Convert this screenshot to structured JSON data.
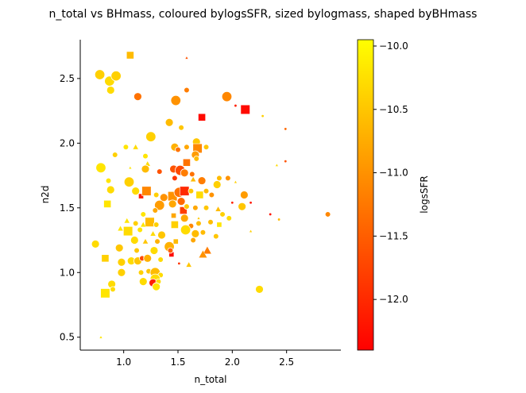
{
  "chart_data": {
    "type": "scatter",
    "title": "n_total vs BHmass, coloured bylogsSFR, sized bylogmass, shaped byBHmass",
    "xlabel": "n_total",
    "ylabel": "n2d",
    "colorbar_label": "logsSFR",
    "xlim": [
      0.6,
      3.0
    ],
    "ylim": [
      0.4,
      2.8
    ],
    "xticks": [
      "1.0",
      "1.5",
      "2.0",
      "2.5"
    ],
    "yticks": [
      "0.5",
      "1.0",
      "1.5",
      "2.0",
      "2.5"
    ],
    "cbar_ticks": [
      "−10.0",
      "−10.5",
      "−11.0",
      "−11.5",
      "−12.0"
    ],
    "cbar_range": [
      -12.4,
      -9.95
    ],
    "colormap": "autumn",
    "colors": {
      "low": "#ff0000",
      "high": "#ffff00"
    },
    "legend": "none",
    "grid": false,
    "points": [
      {
        "x": 0.78,
        "y": 2.53,
        "c": -10.4,
        "m": "circle",
        "s": "large"
      },
      {
        "x": 0.87,
        "y": 2.48,
        "c": -10.3,
        "m": "circle",
        "s": "large"
      },
      {
        "x": 0.93,
        "y": 2.52,
        "c": -10.4,
        "m": "circle",
        "s": "large"
      },
      {
        "x": 0.88,
        "y": 2.41,
        "c": -10.3,
        "m": "circle",
        "s": "medium"
      },
      {
        "x": 1.06,
        "y": 2.68,
        "c": -10.6,
        "m": "square",
        "s": "medium"
      },
      {
        "x": 1.13,
        "y": 2.36,
        "c": -11.3,
        "m": "circle",
        "s": "medium"
      },
      {
        "x": 1.58,
        "y": 2.66,
        "c": -11.6,
        "m": "triangle",
        "s": "tiny"
      },
      {
        "x": 1.48,
        "y": 2.33,
        "c": -11.0,
        "m": "circle",
        "s": "large"
      },
      {
        "x": 1.58,
        "y": 2.41,
        "c": -11.2,
        "m": "circle",
        "s": "small"
      },
      {
        "x": 1.95,
        "y": 2.36,
        "c": -11.1,
        "m": "circle",
        "s": "large"
      },
      {
        "x": 2.03,
        "y": 2.29,
        "c": -12.1,
        "m": "circle",
        "s": "tiny"
      },
      {
        "x": 2.12,
        "y": 2.26,
        "c": -12.3,
        "m": "square",
        "s": "large"
      },
      {
        "x": 1.72,
        "y": 2.2,
        "c": -12.3,
        "m": "square",
        "s": "medium"
      },
      {
        "x": 1.42,
        "y": 2.16,
        "c": -10.6,
        "m": "circle",
        "s": "medium"
      },
      {
        "x": 1.53,
        "y": 2.12,
        "c": -10.5,
        "m": "circle",
        "s": "small"
      },
      {
        "x": 2.28,
        "y": 2.21,
        "c": -10.4,
        "m": "circle",
        "s": "tiny"
      },
      {
        "x": 2.49,
        "y": 2.11,
        "c": -11.4,
        "m": "circle",
        "s": "tiny"
      },
      {
        "x": 1.25,
        "y": 2.05,
        "c": -10.4,
        "m": "circle",
        "s": "large"
      },
      {
        "x": 1.02,
        "y": 1.97,
        "c": -10.2,
        "m": "circle",
        "s": "small"
      },
      {
        "x": 1.11,
        "y": 1.97,
        "c": -10.3,
        "m": "triangle",
        "s": "small"
      },
      {
        "x": 0.92,
        "y": 1.91,
        "c": -10.4,
        "m": "circle",
        "s": "small"
      },
      {
        "x": 1.2,
        "y": 1.9,
        "c": -10.2,
        "m": "circle",
        "s": "small"
      },
      {
        "x": 1.47,
        "y": 1.97,
        "c": -10.7,
        "m": "circle",
        "s": "medium"
      },
      {
        "x": 1.5,
        "y": 1.95,
        "c": -11.3,
        "m": "circle",
        "s": "small"
      },
      {
        "x": 1.58,
        "y": 1.97,
        "c": -10.8,
        "m": "circle",
        "s": "small"
      },
      {
        "x": 1.67,
        "y": 2.01,
        "c": -10.5,
        "m": "circle",
        "s": "medium"
      },
      {
        "x": 1.68,
        "y": 1.96,
        "c": -11.1,
        "m": "square",
        "s": "large"
      },
      {
        "x": 1.76,
        "y": 1.97,
        "c": -10.5,
        "m": "circle",
        "s": "small"
      },
      {
        "x": 1.22,
        "y": 1.84,
        "c": -10.3,
        "m": "triangle",
        "s": "small"
      },
      {
        "x": 1.58,
        "y": 1.85,
        "c": -11.3,
        "m": "square",
        "s": "medium"
      },
      {
        "x": 1.66,
        "y": 1.91,
        "c": -10.9,
        "m": "circle",
        "s": "medium"
      },
      {
        "x": 1.67,
        "y": 1.88,
        "c": -10.6,
        "m": "circle",
        "s": "small"
      },
      {
        "x": 2.49,
        "y": 1.86,
        "c": -11.6,
        "m": "circle",
        "s": "tiny"
      },
      {
        "x": 2.41,
        "y": 1.83,
        "c": -10.3,
        "m": "triangle",
        "s": "tiny"
      },
      {
        "x": 0.79,
        "y": 1.81,
        "c": -10.2,
        "m": "circle",
        "s": "large"
      },
      {
        "x": 1.06,
        "y": 1.81,
        "c": -10.2,
        "m": "triangle",
        "s": "tiny"
      },
      {
        "x": 1.2,
        "y": 1.8,
        "c": -10.6,
        "m": "circle",
        "s": "medium"
      },
      {
        "x": 1.33,
        "y": 1.78,
        "c": -11.6,
        "m": "circle",
        "s": "small"
      },
      {
        "x": 1.46,
        "y": 1.8,
        "c": -11.6,
        "m": "circle",
        "s": "medium"
      },
      {
        "x": 1.52,
        "y": 1.79,
        "c": -11.7,
        "m": "circle",
        "s": "large"
      },
      {
        "x": 1.56,
        "y": 1.77,
        "c": -11.2,
        "m": "circle",
        "s": "medium"
      },
      {
        "x": 1.63,
        "y": 1.76,
        "c": -11.3,
        "m": "circle",
        "s": "small"
      },
      {
        "x": 1.64,
        "y": 1.72,
        "c": -10.6,
        "m": "triangle",
        "s": "small"
      },
      {
        "x": 1.47,
        "y": 1.73,
        "c": -11.9,
        "m": "circle",
        "s": "small"
      },
      {
        "x": 1.72,
        "y": 1.71,
        "c": -11.2,
        "m": "circle",
        "s": "medium"
      },
      {
        "x": 1.88,
        "y": 1.73,
        "c": -10.6,
        "m": "circle",
        "s": "small"
      },
      {
        "x": 1.96,
        "y": 1.73,
        "c": -11.0,
        "m": "circle",
        "s": "small"
      },
      {
        "x": 2.03,
        "y": 1.7,
        "c": -10.4,
        "m": "triangle",
        "s": "tiny"
      },
      {
        "x": 0.86,
        "y": 1.71,
        "c": -10.2,
        "m": "circle",
        "s": "small"
      },
      {
        "x": 1.05,
        "y": 1.7,
        "c": -10.4,
        "m": "circle",
        "s": "large"
      },
      {
        "x": 1.11,
        "y": 1.63,
        "c": -10.3,
        "m": "circle",
        "s": "medium"
      },
      {
        "x": 1.16,
        "y": 1.59,
        "c": -12.1,
        "m": "square",
        "s": "small"
      },
      {
        "x": 1.21,
        "y": 1.63,
        "c": -11.1,
        "m": "square",
        "s": "large"
      },
      {
        "x": 1.3,
        "y": 1.6,
        "c": -10.4,
        "m": "circle",
        "s": "small"
      },
      {
        "x": 1.37,
        "y": 1.58,
        "c": -11.0,
        "m": "circle",
        "s": "medium"
      },
      {
        "x": 1.45,
        "y": 1.59,
        "c": -11.0,
        "m": "square",
        "s": "large"
      },
      {
        "x": 1.51,
        "y": 1.62,
        "c": -11.3,
        "m": "circle",
        "s": "large"
      },
      {
        "x": 1.56,
        "y": 1.63,
        "c": -12.0,
        "m": "square",
        "s": "large"
      },
      {
        "x": 1.53,
        "y": 1.55,
        "c": -11.4,
        "m": "circle",
        "s": "medium"
      },
      {
        "x": 1.62,
        "y": 1.63,
        "c": -10.5,
        "m": "circle",
        "s": "small"
      },
      {
        "x": 1.7,
        "y": 1.6,
        "c": -10.3,
        "m": "square",
        "s": "medium"
      },
      {
        "x": 1.76,
        "y": 1.63,
        "c": -10.6,
        "m": "circle",
        "s": "small"
      },
      {
        "x": 1.81,
        "y": 1.6,
        "c": -11.0,
        "m": "circle",
        "s": "small"
      },
      {
        "x": 2.11,
        "y": 1.6,
        "c": -10.9,
        "m": "circle",
        "s": "medium"
      },
      {
        "x": 1.86,
        "y": 1.68,
        "c": -10.4,
        "m": "circle",
        "s": "medium"
      },
      {
        "x": 0.88,
        "y": 1.64,
        "c": -10.3,
        "m": "circle",
        "s": "medium"
      },
      {
        "x": 0.85,
        "y": 1.53,
        "c": -10.2,
        "m": "square",
        "s": "medium"
      },
      {
        "x": 1.33,
        "y": 1.52,
        "c": -10.9,
        "m": "circle",
        "s": "large"
      },
      {
        "x": 1.45,
        "y": 1.53,
        "c": -10.8,
        "m": "circle",
        "s": "medium"
      },
      {
        "x": 1.55,
        "y": 1.48,
        "c": -11.8,
        "m": "square",
        "s": "medium"
      },
      {
        "x": 1.58,
        "y": 1.51,
        "c": -10.5,
        "m": "circle",
        "s": "small"
      },
      {
        "x": 1.66,
        "y": 1.5,
        "c": -10.8,
        "m": "circle",
        "s": "small"
      },
      {
        "x": 1.76,
        "y": 1.5,
        "c": -10.5,
        "m": "circle",
        "s": "small"
      },
      {
        "x": 1.87,
        "y": 1.49,
        "c": -10.6,
        "m": "triangle",
        "s": "small"
      },
      {
        "x": 1.91,
        "y": 1.45,
        "c": -10.4,
        "m": "circle",
        "s": "small"
      },
      {
        "x": 2.0,
        "y": 1.54,
        "c": -12.1,
        "m": "circle",
        "s": "tiny"
      },
      {
        "x": 2.09,
        "y": 1.51,
        "c": -10.5,
        "m": "circle",
        "s": "medium"
      },
      {
        "x": 2.17,
        "y": 1.54,
        "c": -12.2,
        "m": "circle",
        "s": "tiny"
      },
      {
        "x": 2.35,
        "y": 1.45,
        "c": -12.2,
        "m": "circle",
        "s": "tiny"
      },
      {
        "x": 2.43,
        "y": 1.41,
        "c": -10.6,
        "m": "circle",
        "s": "tiny"
      },
      {
        "x": 2.88,
        "y": 1.45,
        "c": -11.1,
        "m": "circle",
        "s": "small"
      },
      {
        "x": 1.18,
        "y": 1.45,
        "c": -10.2,
        "m": "circle",
        "s": "small"
      },
      {
        "x": 1.24,
        "y": 1.39,
        "c": -10.6,
        "m": "square",
        "s": "large"
      },
      {
        "x": 1.29,
        "y": 1.48,
        "c": -10.8,
        "m": "circle",
        "s": "small"
      },
      {
        "x": 1.46,
        "y": 1.44,
        "c": -10.8,
        "m": "square",
        "s": "small"
      },
      {
        "x": 1.56,
        "y": 1.42,
        "c": -10.8,
        "m": "circle",
        "s": "medium"
      },
      {
        "x": 1.69,
        "y": 1.42,
        "c": -10.5,
        "m": "triangle",
        "s": "tiny"
      },
      {
        "x": 1.97,
        "y": 1.42,
        "c": -10.3,
        "m": "circle",
        "s": "small"
      },
      {
        "x": 1.03,
        "y": 1.4,
        "c": -10.2,
        "m": "triangle",
        "s": "small"
      },
      {
        "x": 1.11,
        "y": 1.38,
        "c": -10.4,
        "m": "circle",
        "s": "small"
      },
      {
        "x": 1.18,
        "y": 1.37,
        "c": -10.2,
        "m": "triangle",
        "s": "small"
      },
      {
        "x": 1.3,
        "y": 1.37,
        "c": -10.4,
        "m": "circle",
        "s": "small"
      },
      {
        "x": 1.47,
        "y": 1.37,
        "c": -10.4,
        "m": "square",
        "s": "medium"
      },
      {
        "x": 1.62,
        "y": 1.36,
        "c": -11.1,
        "m": "circle",
        "s": "small"
      },
      {
        "x": 1.69,
        "y": 1.38,
        "c": -10.6,
        "m": "circle",
        "s": "small"
      },
      {
        "x": 1.8,
        "y": 1.39,
        "c": -10.6,
        "m": "circle",
        "s": "small"
      },
      {
        "x": 1.88,
        "y": 1.37,
        "c": -10.2,
        "m": "square",
        "s": "small"
      },
      {
        "x": 2.17,
        "y": 1.32,
        "c": -10.4,
        "m": "triangle",
        "s": "tiny"
      },
      {
        "x": 1.04,
        "y": 1.32,
        "c": -10.3,
        "m": "square",
        "s": "large"
      },
      {
        "x": 0.97,
        "y": 1.34,
        "c": -10.2,
        "m": "triangle",
        "s": "small"
      },
      {
        "x": 1.15,
        "y": 1.33,
        "c": -10.2,
        "m": "circle",
        "s": "small"
      },
      {
        "x": 1.27,
        "y": 1.3,
        "c": -10.3,
        "m": "triangle",
        "s": "small"
      },
      {
        "x": 1.35,
        "y": 1.29,
        "c": -10.5,
        "m": "circle",
        "s": "medium"
      },
      {
        "x": 1.57,
        "y": 1.33,
        "c": -10.3,
        "m": "circle",
        "s": "large"
      },
      {
        "x": 1.66,
        "y": 1.3,
        "c": -10.6,
        "m": "circle",
        "s": "medium"
      },
      {
        "x": 1.73,
        "y": 1.31,
        "c": -10.6,
        "m": "circle",
        "s": "small"
      },
      {
        "x": 1.85,
        "y": 1.28,
        "c": -10.5,
        "m": "circle",
        "s": "small"
      },
      {
        "x": 1.1,
        "y": 1.25,
        "c": -10.3,
        "m": "circle",
        "s": "medium"
      },
      {
        "x": 1.2,
        "y": 1.24,
        "c": -10.5,
        "m": "triangle",
        "s": "small"
      },
      {
        "x": 1.31,
        "y": 1.24,
        "c": -10.7,
        "m": "circle",
        "s": "small"
      },
      {
        "x": 1.48,
        "y": 1.24,
        "c": -10.6,
        "m": "square",
        "s": "small"
      },
      {
        "x": 1.64,
        "y": 1.25,
        "c": -10.8,
        "m": "circle",
        "s": "small"
      },
      {
        "x": 0.74,
        "y": 1.22,
        "c": -10.3,
        "m": "circle",
        "s": "medium"
      },
      {
        "x": 0.96,
        "y": 1.19,
        "c": -10.5,
        "m": "circle",
        "s": "medium"
      },
      {
        "x": 1.12,
        "y": 1.17,
        "c": -10.5,
        "m": "circle",
        "s": "small"
      },
      {
        "x": 1.28,
        "y": 1.17,
        "c": -10.3,
        "m": "circle",
        "s": "medium"
      },
      {
        "x": 1.42,
        "y": 1.2,
        "c": -10.7,
        "m": "circle",
        "s": "large"
      },
      {
        "x": 1.77,
        "y": 1.17,
        "c": -11.2,
        "m": "triangle",
        "s": "medium"
      },
      {
        "x": 1.73,
        "y": 1.14,
        "c": -11.0,
        "m": "triangle",
        "s": "medium"
      },
      {
        "x": 1.44,
        "y": 1.14,
        "c": -12.3,
        "m": "square",
        "s": "small"
      },
      {
        "x": 1.43,
        "y": 1.17,
        "c": -11.5,
        "m": "circle",
        "s": "small"
      },
      {
        "x": 0.83,
        "y": 1.11,
        "c": -10.4,
        "m": "square",
        "s": "medium"
      },
      {
        "x": 1.07,
        "y": 1.09,
        "c": -10.3,
        "m": "circle",
        "s": "medium"
      },
      {
        "x": 0.98,
        "y": 1.08,
        "c": -10.4,
        "m": "circle",
        "s": "medium"
      },
      {
        "x": 1.13,
        "y": 1.09,
        "c": -10.5,
        "m": "circle",
        "s": "medium"
      },
      {
        "x": 1.17,
        "y": 1.11,
        "c": -11.7,
        "m": "circle",
        "s": "small"
      },
      {
        "x": 1.22,
        "y": 1.11,
        "c": -10.7,
        "m": "circle",
        "s": "medium"
      },
      {
        "x": 1.34,
        "y": 1.1,
        "c": -10.3,
        "m": "circle",
        "s": "small"
      },
      {
        "x": 1.51,
        "y": 1.07,
        "c": -11.9,
        "m": "circle",
        "s": "tiny"
      },
      {
        "x": 1.6,
        "y": 1.06,
        "c": -10.5,
        "m": "triangle",
        "s": "small"
      },
      {
        "x": 0.98,
        "y": 1.0,
        "c": -10.4,
        "m": "circle",
        "s": "medium"
      },
      {
        "x": 1.16,
        "y": 1.0,
        "c": -10.4,
        "m": "circle",
        "s": "small"
      },
      {
        "x": 1.23,
        "y": 1.01,
        "c": -10.5,
        "m": "circle",
        "s": "small"
      },
      {
        "x": 1.29,
        "y": 1.0,
        "c": -10.6,
        "m": "circle",
        "s": "large"
      },
      {
        "x": 1.34,
        "y": 0.98,
        "c": -10.3,
        "m": "circle",
        "s": "small"
      },
      {
        "x": 1.26,
        "y": 0.94,
        "c": -10.4,
        "m": "triangle",
        "s": "small"
      },
      {
        "x": 1.29,
        "y": 0.95,
        "c": -10.3,
        "m": "circle",
        "s": "large"
      },
      {
        "x": 1.27,
        "y": 0.92,
        "c": -12.1,
        "m": "circle",
        "s": "medium"
      },
      {
        "x": 1.32,
        "y": 0.93,
        "c": -10.3,
        "m": "circle",
        "s": "small"
      },
      {
        "x": 1.18,
        "y": 0.93,
        "c": -10.3,
        "m": "circle",
        "s": "medium"
      },
      {
        "x": 1.3,
        "y": 0.89,
        "c": -10.2,
        "m": "circle",
        "s": "medium"
      },
      {
        "x": 0.89,
        "y": 0.91,
        "c": -10.3,
        "m": "circle",
        "s": "medium"
      },
      {
        "x": 0.9,
        "y": 0.87,
        "c": -10.3,
        "m": "circle",
        "s": "small"
      },
      {
        "x": 0.83,
        "y": 0.84,
        "c": -10.2,
        "m": "square",
        "s": "large"
      },
      {
        "x": 2.25,
        "y": 0.87,
        "c": -10.3,
        "m": "circle",
        "s": "medium"
      },
      {
        "x": 0.79,
        "y": 0.5,
        "c": -10.2,
        "m": "triangle",
        "s": "tiny"
      }
    ]
  }
}
